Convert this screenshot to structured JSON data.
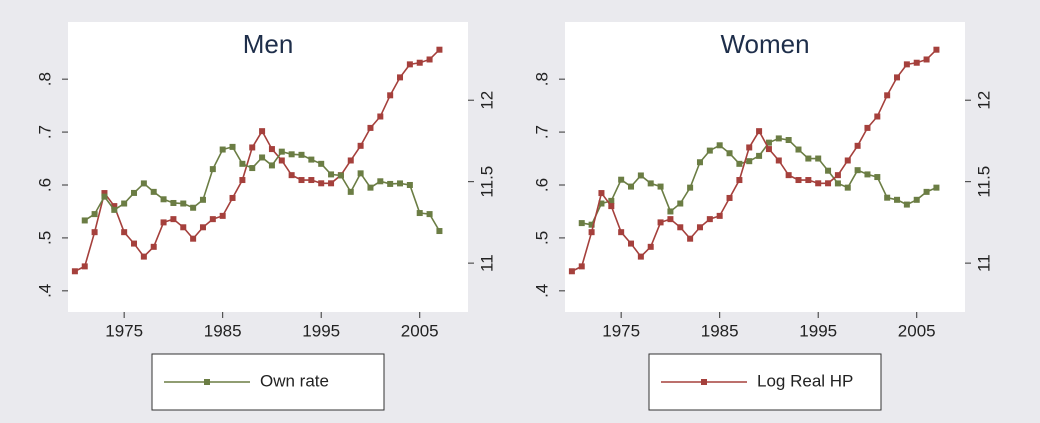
{
  "chart_data": [
    {
      "type": "line",
      "title": "Men",
      "x": [
        1970,
        1971,
        1972,
        1973,
        1974,
        1975,
        1976,
        1977,
        1978,
        1979,
        1980,
        1981,
        1982,
        1983,
        1984,
        1985,
        1986,
        1987,
        1988,
        1989,
        1990,
        1991,
        1992,
        1993,
        1994,
        1995,
        1996,
        1997,
        1998,
        1999,
        2000,
        2001,
        2002,
        2003,
        2004,
        2005,
        2006,
        2007
      ],
      "series": [
        {
          "color": "#a5403c",
          "axis": "y2",
          "values": [
            10.95,
            10.98,
            11.19,
            11.43,
            11.35,
            11.19,
            11.12,
            11.04,
            11.1,
            11.25,
            11.27,
            11.22,
            11.15,
            11.22,
            11.27,
            11.29,
            11.4,
            11.51,
            11.71,
            11.81,
            11.7,
            11.63,
            11.54,
            11.51,
            11.51,
            11.49,
            11.49,
            11.54,
            11.63,
            11.72,
            11.83,
            11.9,
            12.03,
            12.14,
            12.22,
            12.23,
            12.25,
            12.31
          ]
        },
        {
          "name": "Own rate",
          "color": "#6b7d44",
          "values": [
            null,
            0.533,
            0.545,
            0.578,
            0.553,
            0.565,
            0.585,
            0.603,
            0.587,
            0.573,
            0.566,
            0.565,
            0.557,
            0.572,
            0.63,
            0.667,
            0.672,
            0.64,
            0.632,
            0.652,
            0.637,
            0.663,
            0.658,
            0.657,
            0.648,
            0.64,
            0.62,
            0.618,
            0.587,
            0.622,
            0.595,
            0.607,
            0.602,
            0.603,
            0.6,
            0.547,
            0.545,
            0.513
          ]
        }
      ],
      "xlim": [
        1969.3,
        2009.9
      ],
      "xticks": [
        1975,
        1985,
        1995,
        2005
      ],
      "ylim": [
        0.36,
        0.908
      ],
      "yticks": [
        {
          "value": 0.4,
          "label": ".4"
        },
        {
          "value": 0.5,
          "label": ".5"
        },
        {
          "value": 0.6,
          "label": ".6"
        },
        {
          "value": 0.7,
          "label": ".7"
        },
        {
          "value": 0.8,
          "label": ".8"
        }
      ],
      "y2lim": [
        10.7,
        12.48
      ],
      "y2ticks": [
        11,
        11.5,
        12
      ],
      "legend": "bottom"
    },
    {
      "type": "line",
      "title": "Women",
      "x": [
        1970,
        1971,
        1972,
        1973,
        1974,
        1975,
        1976,
        1977,
        1978,
        1979,
        1980,
        1981,
        1982,
        1983,
        1984,
        1985,
        1986,
        1987,
        1988,
        1989,
        1990,
        1991,
        1992,
        1993,
        1994,
        1995,
        1996,
        1997,
        1998,
        1999,
        2000,
        2001,
        2002,
        2003,
        2004,
        2005,
        2006,
        2007
      ],
      "series": [
        {
          "color": "#6b7d44",
          "values": [
            null,
            0.528,
            0.525,
            0.565,
            0.57,
            0.61,
            0.597,
            0.618,
            0.603,
            0.597,
            0.55,
            0.565,
            0.595,
            0.643,
            0.665,
            0.675,
            0.66,
            0.64,
            0.645,
            0.655,
            0.68,
            0.688,
            0.685,
            0.667,
            0.65,
            0.65,
            0.627,
            0.603,
            0.595,
            0.628,
            0.62,
            0.615,
            0.576,
            0.572,
            0.563,
            0.572,
            0.587,
            0.595
          ]
        },
        {
          "name": "Log Real HP",
          "color": "#a5403c",
          "axis": "y2",
          "values": [
            10.95,
            10.98,
            11.19,
            11.43,
            11.35,
            11.19,
            11.12,
            11.04,
            11.1,
            11.25,
            11.27,
            11.22,
            11.15,
            11.22,
            11.27,
            11.29,
            11.4,
            11.51,
            11.71,
            11.81,
            11.7,
            11.63,
            11.54,
            11.51,
            11.51,
            11.49,
            11.49,
            11.54,
            11.63,
            11.72,
            11.83,
            11.9,
            12.03,
            12.14,
            12.22,
            12.23,
            12.25,
            12.31
          ]
        }
      ],
      "xlim": [
        1969.3,
        2009.9
      ],
      "xticks": [
        1975,
        1985,
        1995,
        2005
      ],
      "ylim": [
        0.36,
        0.908
      ],
      "yticks": [
        {
          "value": 0.4,
          "label": ".4"
        },
        {
          "value": 0.5,
          "label": ".5"
        },
        {
          "value": 0.6,
          "label": ".6"
        },
        {
          "value": 0.7,
          "label": ".7"
        },
        {
          "value": 0.8,
          "label": ".8"
        }
      ],
      "y2lim": [
        10.7,
        12.48
      ],
      "y2ticks": [
        11,
        11.5,
        12
      ],
      "legend": "bottom"
    }
  ]
}
